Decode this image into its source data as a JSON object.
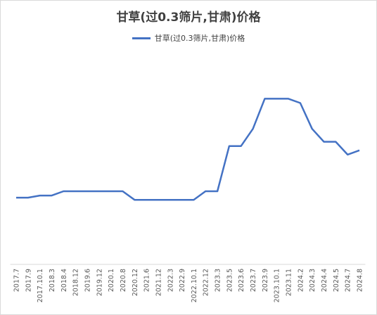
{
  "chart_data": {
    "type": "line",
    "title": "甘草(过0.3筛片,甘肃)价格",
    "xlabel": "",
    "ylabel": "",
    "grid": false,
    "legend_position": "top",
    "categories": [
      "2017.7",
      "2017.9",
      "2017.10.1",
      "2018.3",
      "2018.4",
      "2018.12",
      "2019.6",
      "2019.12",
      "2020.1",
      "2020.8",
      "2020.12",
      "2021.6",
      "2021.12",
      "2022.3",
      "2022.9",
      "2022.10.1",
      "2022.12",
      "2023.3",
      "2023.5",
      "2023.6",
      "2023.7",
      "2023.9",
      "2023.10.1",
      "2023.11",
      "2024.2",
      "2024.3",
      "2024.4",
      "2024.5",
      "2024.7",
      "2024.8"
    ],
    "series": [
      {
        "name": "甘草(过0.3筛片,甘肃)价格",
        "color": "#4472C4",
        "values": [
          31,
          31,
          32,
          32,
          34,
          34,
          34,
          34,
          34,
          34,
          30,
          30,
          30,
          30,
          30,
          30,
          34,
          34,
          55,
          55,
          63,
          77,
          77,
          77,
          75,
          63,
          57,
          57,
          51,
          53
        ]
      }
    ],
    "ylim": [
      0,
      100
    ]
  }
}
